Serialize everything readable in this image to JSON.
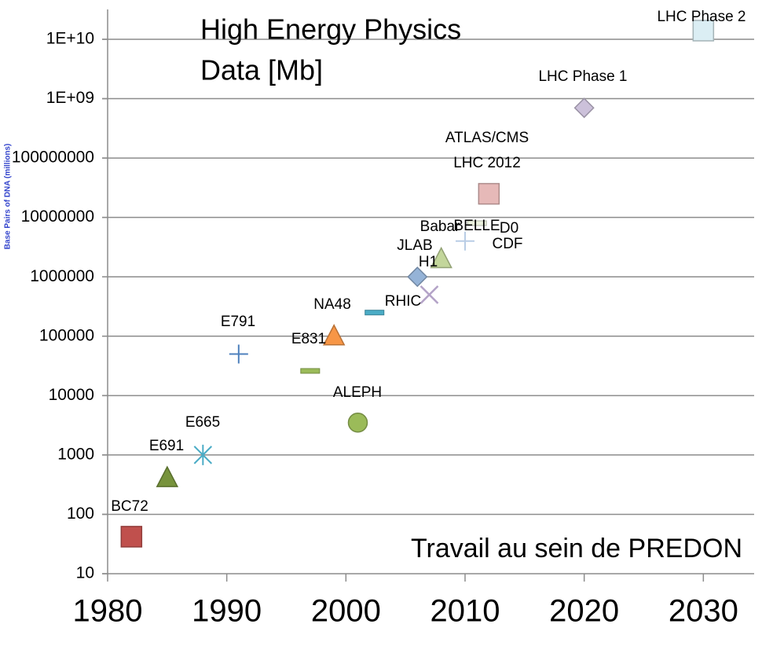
{
  "chart_data": {
    "type": "scatter",
    "title": [
      "High Energy Physics",
      "Data [Mb]"
    ],
    "ylabel": "Base Pairs of DNA (millions)",
    "note": "Travail au sein de PREDON",
    "log_y": true,
    "grid": true,
    "xlim": [
      1980,
      2034
    ],
    "xticks": [
      1980,
      1990,
      2000,
      2010,
      2020,
      2030
    ],
    "ylim": [
      10,
      10000000000
    ],
    "yticks": [
      10,
      100,
      1000,
      10000,
      100000,
      1000000,
      {
        "value": 10000000,
        "label": "10000000"
      },
      {
        "value": 100000000,
        "label": "100000000"
      },
      {
        "value": 1000000000,
        "label": "1E+09"
      },
      {
        "value": 10000000000,
        "label": "1E+10"
      }
    ],
    "points": [
      {
        "x": 1982,
        "y": 42,
        "color": "#c0504d",
        "marker": "square"
      },
      {
        "x": 1985,
        "y": 410,
        "color": "#77933c",
        "marker": "triangle"
      },
      {
        "x": 1988,
        "y": 1000,
        "color": "#4bacc6",
        "marker": "asterisk"
      },
      {
        "x": 1991,
        "y": 50000,
        "color": "#4f81bd",
        "marker": "plus"
      },
      {
        "x": 1997,
        "y": 26000,
        "color": "#9bbb59",
        "marker": "dash"
      },
      {
        "x": 1999,
        "y": 100000,
        "color": "#f79646",
        "marker": "triangle"
      },
      {
        "x": 2002.4,
        "y": 250000,
        "color": "#4bacc6",
        "marker": "dash"
      },
      {
        "x": 2001,
        "y": 3500,
        "color": "#9bbb59",
        "marker": "circle"
      },
      {
        "x": 2006,
        "y": 1000000,
        "color": "#95b3d7",
        "marker": "diamond"
      },
      {
        "x": 2007,
        "y": 500000,
        "color": "#b3a2c7",
        "marker": "x"
      },
      {
        "x": 2008,
        "y": 2000000,
        "color": "#c3d69b",
        "marker": "triangle"
      },
      {
        "x": 2010,
        "y": 4000000,
        "color": "#b9cde5",
        "marker": "plus"
      },
      {
        "x": 2011,
        "y": 8000000,
        "color": "#ebf1de",
        "marker": "dash"
      },
      {
        "x": 2012,
        "y": 25000000,
        "color": "#e6b9b8",
        "marker": "square"
      },
      {
        "x": 2020,
        "y": 700000000,
        "color": "#ccc1da",
        "marker": "diamond"
      },
      {
        "x": 2030,
        "y": 14000000000,
        "color": "#dbeef4",
        "marker": "square"
      }
    ],
    "annotations": [
      "BC72",
      "E691",
      "E665",
      "E791",
      "E831",
      "NA48",
      "RHIC",
      "ALEPH",
      "H1",
      "JLAB",
      "Babar",
      "BELLE",
      "D0",
      "CDF",
      "ATLAS/CMS",
      "LHC 2012",
      "LHC Phase 1",
      "LHC Phase 2"
    ]
  }
}
